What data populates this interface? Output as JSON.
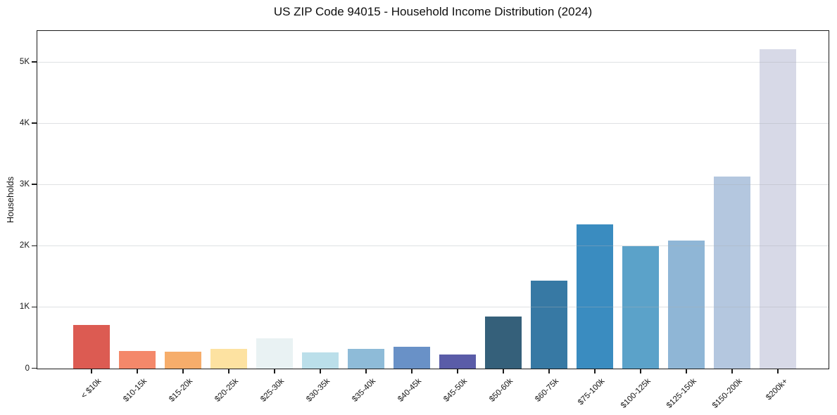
{
  "chart_data": {
    "type": "bar",
    "title": "US ZIP Code 94015 - Household Income Distribution (2024)",
    "xlabel": "",
    "ylabel": "Households",
    "categories": [
      "< $10k",
      "$10-15k",
      "$15-20k",
      "$20-25k",
      "$25-30k",
      "$30-35k",
      "$35-40k",
      "$40-45k",
      "$45-50k",
      "$50-60k",
      "$60-75k",
      "$75-100k",
      "$100-125k",
      "$125-150k",
      "$150-200k",
      "$200k+"
    ],
    "values": [
      710,
      285,
      275,
      320,
      490,
      260,
      325,
      360,
      235,
      850,
      1440,
      2350,
      2000,
      2090,
      3140,
      5210
    ],
    "bar_colors": [
      "#dc5b52",
      "#f4886a",
      "#f6ad6b",
      "#fde2a1",
      "#e9f2f3",
      "#bbdfea",
      "#8ebbd8",
      "#6991c7",
      "#5a5ca8",
      "#35607a",
      "#3779a4",
      "#3a8cc0",
      "#5ba2c9",
      "#8fb6d6",
      "#b4c7df",
      "#d7d9e7"
    ],
    "ylim": [
      0,
      5500
    ],
    "yticks": [
      {
        "value": 0,
        "label": "0"
      },
      {
        "value": 1000,
        "label": "1K"
      },
      {
        "value": 2000,
        "label": "2K"
      },
      {
        "value": 3000,
        "label": "3K"
      },
      {
        "value": 4000,
        "label": "4K"
      },
      {
        "value": 5000,
        "label": "5K"
      }
    ],
    "grid": "horizontal",
    "legend_position": "none",
    "spine_color": "#1b1b1b",
    "background_color": "#ffffff"
  }
}
